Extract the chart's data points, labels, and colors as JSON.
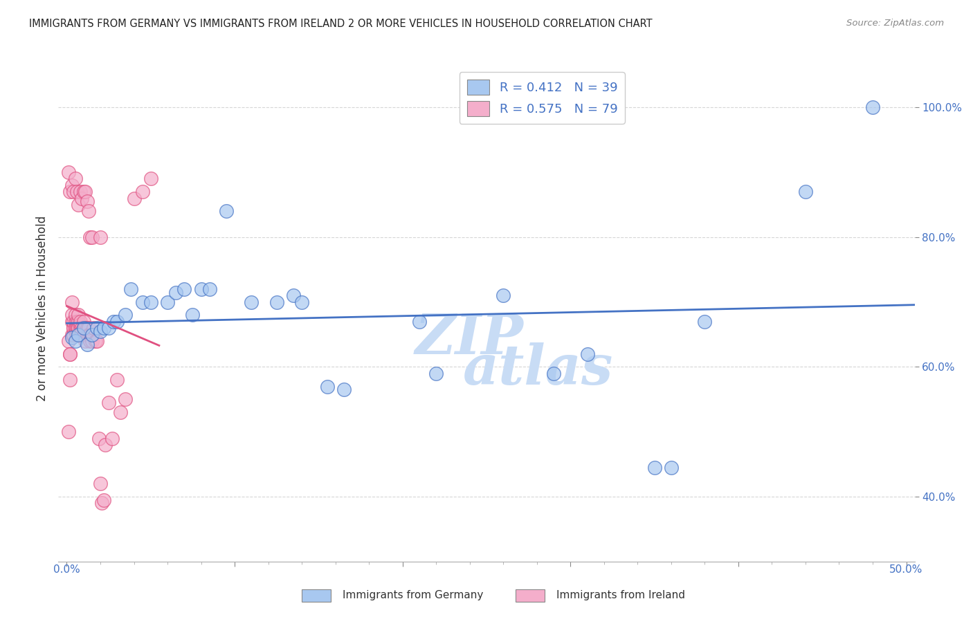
{
  "title": "IMMIGRANTS FROM GERMANY VS IMMIGRANTS FROM IRELAND 2 OR MORE VEHICLES IN HOUSEHOLD CORRELATION CHART",
  "source": "Source: ZipAtlas.com",
  "ylabel": "2 or more Vehicles in Household",
  "xlim": [
    -0.005,
    0.505
  ],
  "ylim": [
    0.3,
    1.08
  ],
  "R_germany": 0.412,
  "N_germany": 39,
  "R_ireland": 0.575,
  "N_ireland": 79,
  "color_germany": "#A8C8F0",
  "color_ireland": "#F4AECB",
  "line_color_germany": "#4472C4",
  "line_color_ireland": "#E05080",
  "legend_label_germany": "Immigrants from Germany",
  "legend_label_ireland": "Immigrants from Ireland",
  "germany_x": [
    0.003,
    0.005,
    0.007,
    0.01,
    0.012,
    0.015,
    0.018,
    0.02,
    0.022,
    0.025,
    0.028,
    0.03,
    0.035,
    0.038,
    0.045,
    0.05,
    0.06,
    0.065,
    0.07,
    0.075,
    0.08,
    0.085,
    0.095,
    0.11,
    0.125,
    0.135,
    0.14,
    0.155,
    0.165,
    0.21,
    0.22,
    0.26,
    0.29,
    0.31,
    0.35,
    0.36,
    0.38,
    0.44,
    0.48
  ],
  "germany_y": [
    0.645,
    0.64,
    0.65,
    0.66,
    0.635,
    0.65,
    0.66,
    0.655,
    0.66,
    0.66,
    0.67,
    0.67,
    0.68,
    0.72,
    0.7,
    0.7,
    0.7,
    0.715,
    0.72,
    0.68,
    0.72,
    0.72,
    0.84,
    0.7,
    0.7,
    0.71,
    0.7,
    0.57,
    0.565,
    0.67,
    0.59,
    0.71,
    0.59,
    0.62,
    0.445,
    0.445,
    0.67,
    0.87,
    1.0
  ],
  "ireland_x": [
    0.001,
    0.001,
    0.002,
    0.002,
    0.002,
    0.003,
    0.003,
    0.003,
    0.003,
    0.004,
    0.004,
    0.004,
    0.004,
    0.004,
    0.005,
    0.005,
    0.005,
    0.005,
    0.005,
    0.006,
    0.006,
    0.006,
    0.006,
    0.007,
    0.007,
    0.007,
    0.007,
    0.008,
    0.008,
    0.008,
    0.008,
    0.009,
    0.009,
    0.009,
    0.01,
    0.01,
    0.01,
    0.011,
    0.011,
    0.012,
    0.012,
    0.013,
    0.013,
    0.014,
    0.014,
    0.015,
    0.015,
    0.016,
    0.017,
    0.018,
    0.019,
    0.02,
    0.021,
    0.022,
    0.023,
    0.025,
    0.027,
    0.03,
    0.032,
    0.035,
    0.04,
    0.045,
    0.05,
    0.001,
    0.002,
    0.003,
    0.004,
    0.005,
    0.006,
    0.007,
    0.008,
    0.009,
    0.01,
    0.011,
    0.012,
    0.013,
    0.014,
    0.015,
    0.02
  ],
  "ireland_y": [
    0.64,
    0.5,
    0.62,
    0.58,
    0.62,
    0.65,
    0.67,
    0.68,
    0.7,
    0.65,
    0.66,
    0.65,
    0.66,
    0.67,
    0.655,
    0.66,
    0.67,
    0.68,
    0.66,
    0.66,
    0.67,
    0.66,
    0.65,
    0.66,
    0.67,
    0.68,
    0.66,
    0.66,
    0.65,
    0.665,
    0.67,
    0.65,
    0.66,
    0.655,
    0.66,
    0.65,
    0.67,
    0.66,
    0.64,
    0.65,
    0.66,
    0.66,
    0.65,
    0.65,
    0.64,
    0.64,
    0.65,
    0.66,
    0.64,
    0.64,
    0.49,
    0.42,
    0.39,
    0.395,
    0.48,
    0.545,
    0.49,
    0.58,
    0.53,
    0.55,
    0.86,
    0.87,
    0.89,
    0.9,
    0.87,
    0.88,
    0.87,
    0.89,
    0.87,
    0.85,
    0.87,
    0.86,
    0.87,
    0.87,
    0.855,
    0.84,
    0.8,
    0.8,
    0.8
  ],
  "watermark_top": "ZIP",
  "watermark_bot": "atlas",
  "watermark_color_top": "#C8DCF5",
  "watermark_color_bot": "#C8DCF5",
  "background_color": "#FFFFFF"
}
